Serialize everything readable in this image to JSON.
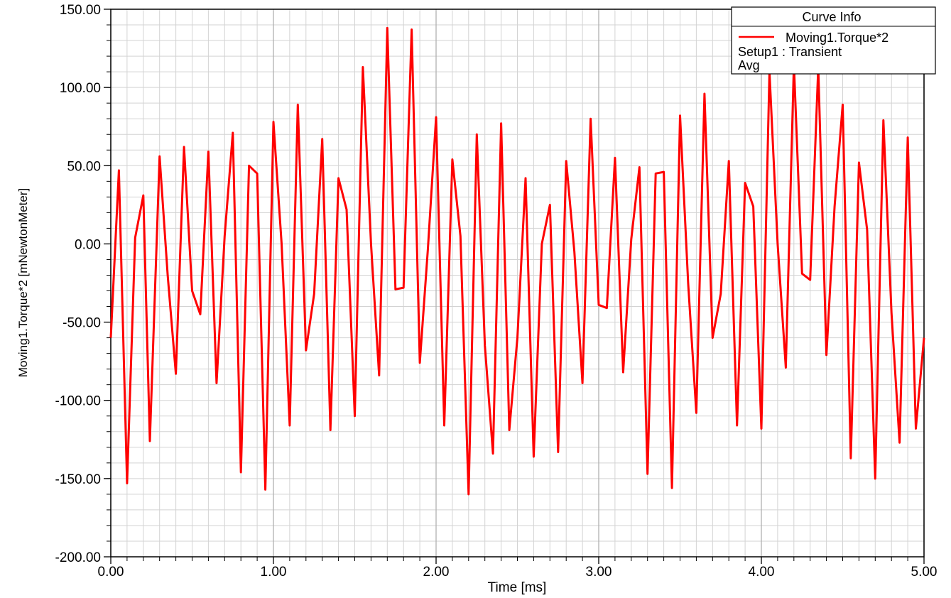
{
  "chart_data": {
    "type": "line",
    "xlabel": "Time [ms]",
    "ylabel": "Moving1.Torque*2 [mNewtonMeter]",
    "xlim": [
      0,
      5
    ],
    "ylim": [
      -200,
      150
    ],
    "x_ticks": [
      0,
      1,
      2,
      3,
      4,
      5
    ],
    "x_tick_labels": [
      "0.00",
      "1.00",
      "2.00",
      "3.00",
      "4.00",
      "5.00"
    ],
    "y_ticks": [
      150,
      100,
      50,
      0,
      -50,
      -100,
      -150,
      -200
    ],
    "y_tick_labels": [
      "150.00",
      "100.00",
      "50.00",
      "0.00",
      "-50.00",
      "-100.00",
      "-150.00",
      "-200.00"
    ],
    "grid": true,
    "legend": {
      "title": "Curve Info",
      "placement": "top-right",
      "entries": [
        {
          "name": "Moving1.Torque*2",
          "color": "#ff0000"
        }
      ],
      "lines": [
        "Setup1 : Transient",
        "Avg"
      ]
    },
    "series": [
      {
        "name": "Moving1.Torque*2",
        "color": "#ff0000",
        "x": [
          0.0,
          0.05,
          0.1,
          0.15,
          0.2,
          0.24,
          0.3,
          0.35,
          0.4,
          0.45,
          0.5,
          0.55,
          0.6,
          0.65,
          0.7,
          0.75,
          0.8,
          0.85,
          0.9,
          0.95,
          1.0,
          1.05,
          1.1,
          1.15,
          1.2,
          1.25,
          1.3,
          1.35,
          1.4,
          1.45,
          1.5,
          1.55,
          1.6,
          1.65,
          1.7,
          1.75,
          1.8,
          1.85,
          1.9,
          1.95,
          2.0,
          2.05,
          2.1,
          2.15,
          2.2,
          2.25,
          2.3,
          2.35,
          2.4,
          2.45,
          2.5,
          2.55,
          2.6,
          2.65,
          2.7,
          2.75,
          2.8,
          2.85,
          2.9,
          2.95,
          3.0,
          3.05,
          3.1,
          3.15,
          3.2,
          3.25,
          3.3,
          3.35,
          3.4,
          3.45,
          3.5,
          3.55,
          3.6,
          3.65,
          3.7,
          3.75,
          3.8,
          3.85,
          3.9,
          3.95,
          4.0,
          4.05,
          4.1,
          4.15,
          4.2,
          4.25,
          4.3,
          4.35,
          4.4,
          4.45,
          4.5,
          4.55,
          4.6,
          4.65,
          4.7,
          4.75,
          4.8,
          4.85,
          4.9,
          4.95,
          5.0
        ],
        "values": [
          -60,
          47,
          -153,
          4,
          31,
          -126,
          56,
          -20,
          -83,
          62,
          -30,
          -45,
          59,
          -89,
          5,
          71,
          -146,
          50,
          45,
          -157,
          78,
          0,
          -116,
          89,
          -68,
          -32,
          67,
          -119,
          42,
          22,
          -110,
          113,
          0,
          -84,
          138,
          -29,
          -28,
          137,
          -76,
          -3,
          81,
          -116,
          54,
          5,
          -160,
          70,
          -65,
          -134,
          77,
          -119,
          -60,
          42,
          -136,
          0,
          25,
          -133,
          53,
          -5,
          -89,
          80,
          -39,
          -41,
          55,
          -82,
          3,
          49,
          -147,
          45,
          46,
          -156,
          82,
          -25,
          -108,
          96,
          -60,
          -32,
          53,
          -116,
          39,
          24,
          -118,
          110,
          0,
          -79,
          115,
          -19,
          -23,
          113,
          -71,
          24,
          89,
          -137,
          52,
          9,
          -150,
          79,
          -44,
          -127,
          68,
          -118,
          -60
        ]
      }
    ]
  }
}
